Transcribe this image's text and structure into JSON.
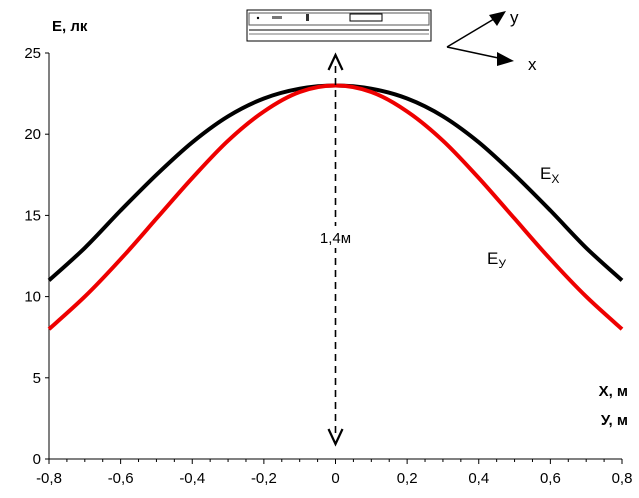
{
  "chart_data": {
    "type": "line",
    "ylabel": "E, лк",
    "xlabel_line1": "X, м",
    "xlabel_line2": "У, м",
    "xlim": [
      -0.8,
      0.8
    ],
    "ylim": [
      0,
      25
    ],
    "x_ticks": [
      "-0,8",
      "-0,6",
      "-0,4",
      "-0,2",
      "0",
      "0,2",
      "0,4",
      "0,6",
      "0,8"
    ],
    "y_ticks": [
      "0",
      "5",
      "10",
      "15",
      "20",
      "25"
    ],
    "grid": false,
    "x": [
      -0.8,
      -0.7,
      -0.6,
      -0.5,
      -0.4,
      -0.3,
      -0.2,
      -0.1,
      0,
      0.1,
      0.2,
      0.3,
      0.4,
      0.5,
      0.6,
      0.7,
      0.8
    ],
    "series": [
      {
        "name": "EX",
        "label_main": "E",
        "label_sub": "X",
        "color": "#000000",
        "values": [
          11.0,
          13.0,
          15.3,
          17.5,
          19.5,
          21.1,
          22.2,
          22.8,
          23.0,
          22.8,
          22.2,
          21.1,
          19.5,
          17.5,
          15.3,
          13.0,
          11.0
        ]
      },
      {
        "name": "Ey",
        "label_main": "E",
        "label_sub": "У",
        "color": "#ee0000",
        "values": [
          8.0,
          10.0,
          12.3,
          14.8,
          17.3,
          19.6,
          21.4,
          22.6,
          23.0,
          22.6,
          21.4,
          19.6,
          17.3,
          14.8,
          12.3,
          10.0,
          8.0
        ]
      }
    ],
    "annotation": "1,4м",
    "axes_labels": {
      "x": "x",
      "y": "y"
    }
  }
}
